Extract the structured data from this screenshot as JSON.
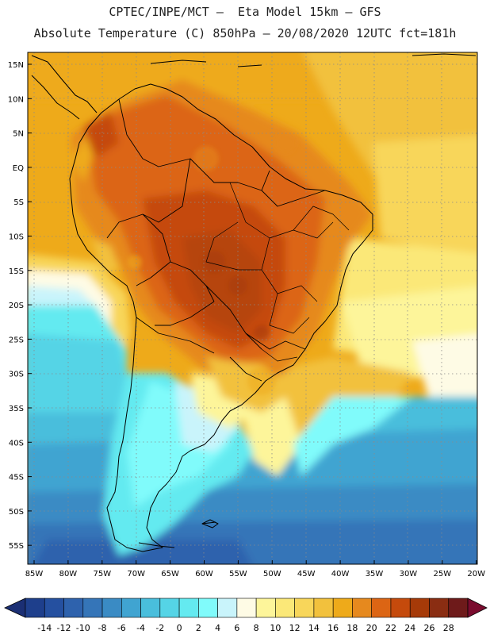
{
  "header": {
    "line1": "CPTEC/INPE/MCT —  Eta Model 15km — GFS",
    "line2": "Absolute Temperature (C) 850hPa — 20/08/2020 12UTC fct=181h"
  },
  "map": {
    "lat_ticks": [
      "15N",
      "10N",
      "5N",
      "EQ",
      "5S",
      "10S",
      "15S",
      "20S",
      "25S",
      "30S",
      "35S",
      "40S",
      "45S",
      "50S",
      "55S"
    ],
    "lon_ticks": [
      "85W",
      "80W",
      "75W",
      "70W",
      "65W",
      "60W",
      "55W",
      "50W",
      "45W",
      "40W",
      "35W",
      "30W",
      "25W",
      "20W"
    ],
    "gridlines": "dotted",
    "region": "South America"
  },
  "colorbar": {
    "labels": [
      "-14",
      "-12",
      "-10",
      "-8",
      "-6",
      "-4",
      "-2",
      "0",
      "2",
      "4",
      "6",
      "8",
      "10",
      "12",
      "14",
      "16",
      "18",
      "20",
      "22",
      "24",
      "26",
      "28"
    ],
    "colors": [
      "#1e3f8c",
      "#2550a0",
      "#2e62ad",
      "#3575b8",
      "#3a8bc4",
      "#40a4d1",
      "#49bedc",
      "#55d4e6",
      "#64eaf0",
      "#80fbfb",
      "#c9f4fb",
      "#fefbe5",
      "#fdf59a",
      "#fbe878",
      "#f8d65a",
      "#f2c13d",
      "#eeaa1a",
      "#e6891e",
      "#dc6514",
      "#c54a0c",
      "#a63a08",
      "#8a2d12",
      "#6e1a1a"
    ],
    "arrow_left_color": "#1b2f74",
    "arrow_right_color": "#7a0b2e"
  }
}
